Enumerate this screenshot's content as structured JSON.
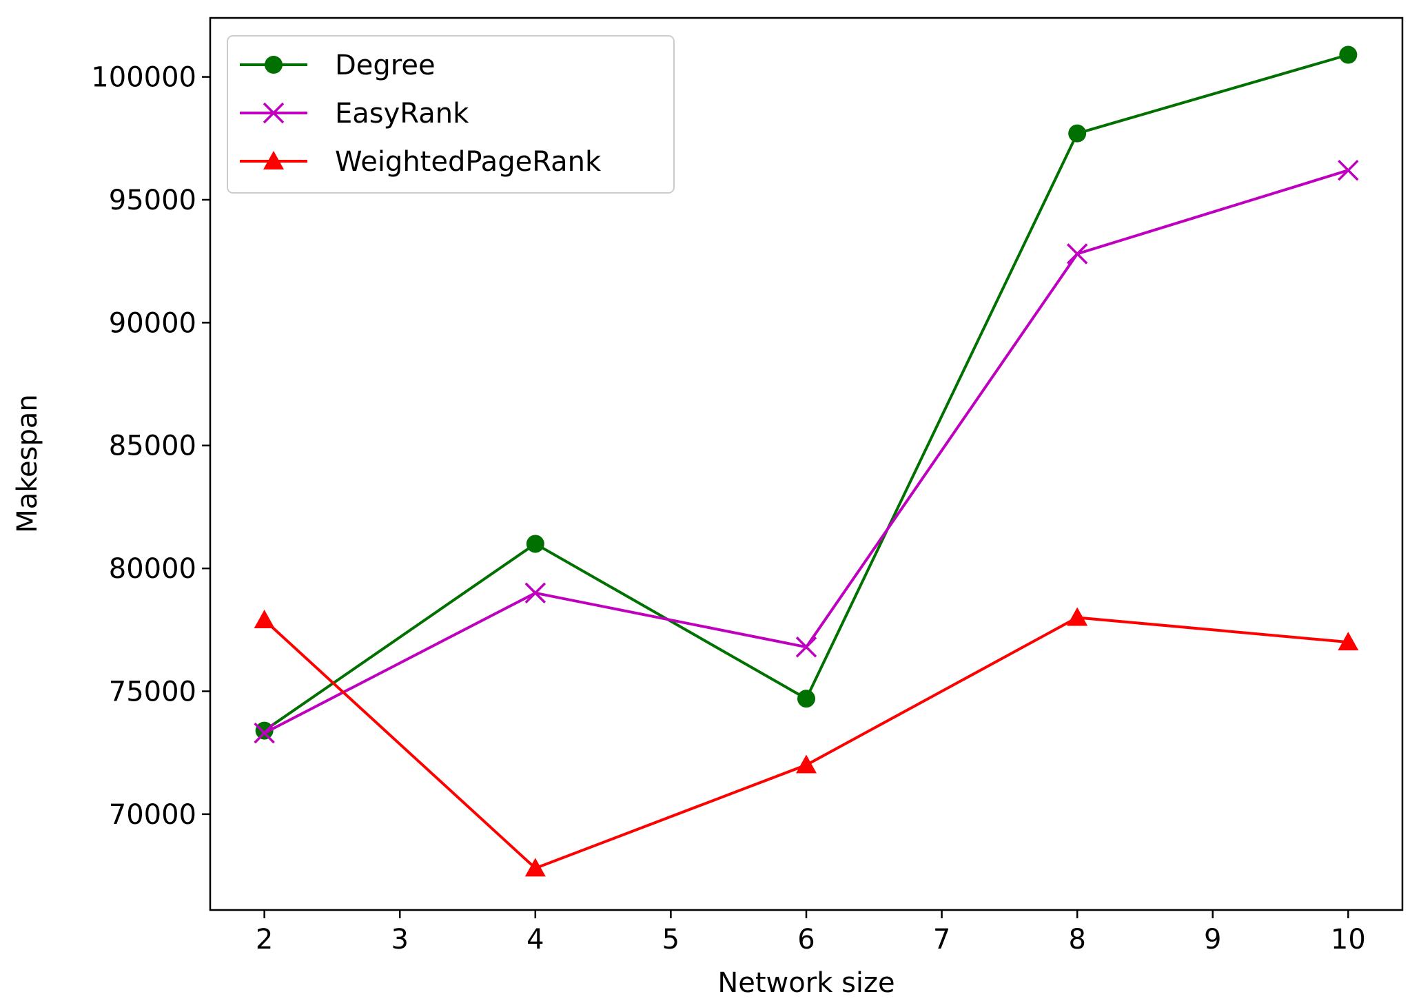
{
  "chart_data": {
    "type": "line",
    "title": "",
    "xlabel": "Network size",
    "ylabel": "Makespan",
    "xlim": [
      1.6,
      10.4
    ],
    "ylim": [
      66100,
      102400
    ],
    "x_ticks": [
      2,
      3,
      4,
      5,
      6,
      7,
      8,
      9,
      10
    ],
    "y_ticks": [
      70000,
      75000,
      80000,
      85000,
      90000,
      95000,
      100000
    ],
    "x_tick_labels": [
      "2",
      "3",
      "4",
      "5",
      "6",
      "7",
      "8",
      "9",
      "10"
    ],
    "y_tick_labels": [
      "70000",
      "75000",
      "80000",
      "85000",
      "90000",
      "95000",
      "100000"
    ],
    "x": [
      2,
      4,
      6,
      8,
      10
    ],
    "grid": false,
    "legend_position": "top-left",
    "series": [
      {
        "name": "Degree",
        "color": "#007000",
        "marker": "circle",
        "values": [
          73400,
          81000,
          74700,
          97700,
          100900
        ]
      },
      {
        "name": "EasyRank",
        "color": "#bf00bf",
        "marker": "x",
        "values": [
          73300,
          79000,
          76800,
          92800,
          96200
        ]
      },
      {
        "name": "WeightedPageRank",
        "color": "#ff0000",
        "marker": "triangle",
        "values": [
          77900,
          67800,
          72000,
          78000,
          77000
        ]
      }
    ]
  }
}
